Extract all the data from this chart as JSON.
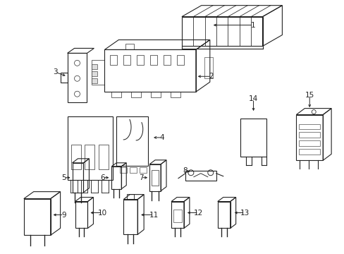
{
  "background_color": "#ffffff",
  "line_color": "#222222",
  "label_fontsize": 7.5,
  "fig_width": 4.89,
  "fig_height": 3.6,
  "dpi": 100
}
